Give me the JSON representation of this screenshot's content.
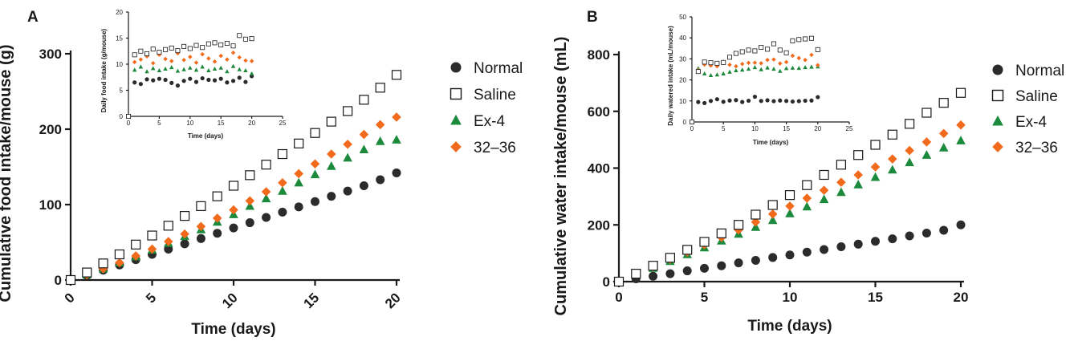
{
  "colors": {
    "Normal": "#2b2b2b",
    "Saline": "#ffffff",
    "Ex-4": "#1c8a3c",
    "32-36": "#f26a1b",
    "axis": "#1a1a1a"
  },
  "legend": {
    "title": "",
    "entries": [
      {
        "name": "Normal",
        "marker": "circle"
      },
      {
        "name": "Saline",
        "marker": "open-square"
      },
      {
        "name": "Ex-4",
        "marker": "triangle"
      },
      {
        "name": "32–36",
        "marker": "diamond"
      }
    ]
  },
  "chart_data": [
    {
      "panel": "A",
      "type": "scatter",
      "xlabel": "Time (days)",
      "ylabel": "Cumulative food intake/mouse (g)",
      "xlim": [
        0,
        20
      ],
      "ylim": [
        0,
        300
      ],
      "xticks": [
        0,
        5,
        10,
        15,
        20
      ],
      "yticks": [
        0,
        100,
        200,
        300
      ],
      "grid": false,
      "legend_position": "right",
      "x": [
        0,
        1,
        2,
        3,
        4,
        5,
        6,
        7,
        8,
        9,
        10,
        11,
        12,
        13,
        14,
        15,
        16,
        17,
        18,
        19,
        20
      ],
      "series": [
        {
          "name": "Normal",
          "values": [
            0,
            6,
            13,
            20,
            27,
            34,
            41,
            48,
            55,
            62,
            69,
            76,
            83,
            90,
            97,
            104,
            111,
            118,
            125,
            133,
            142
          ]
        },
        {
          "name": "Saline",
          "values": [
            0,
            10,
            22,
            34,
            47,
            59,
            72,
            85,
            98,
            111,
            125,
            139,
            153,
            167,
            181,
            195,
            210,
            224,
            239,
            255,
            272
          ]
        },
        {
          "name": "Ex-4",
          "values": [
            0,
            7,
            15,
            23,
            31,
            40,
            49,
            58,
            67,
            77,
            87,
            98,
            108,
            118,
            129,
            140,
            151,
            162,
            173,
            184,
            186
          ]
        },
        {
          "name": "32–36",
          "values": [
            0,
            7,
            15,
            23,
            32,
            41,
            51,
            61,
            71,
            82,
            93,
            105,
            117,
            129,
            141,
            154,
            167,
            180,
            193,
            206,
            216
          ]
        }
      ]
    },
    {
      "panel": "A-inset",
      "type": "scatter",
      "xlabel": "Time (days)",
      "ylabel": "Daily food intake (g/mouse)",
      "xlim": [
        0,
        25
      ],
      "ylim": [
        0,
        20
      ],
      "xticks": [
        0,
        5,
        10,
        15,
        20,
        25
      ],
      "yticks": [
        0,
        5,
        10,
        15,
        20
      ],
      "grid": false,
      "x": [
        0,
        1,
        2,
        3,
        4,
        5,
        6,
        7,
        8,
        9,
        10,
        11,
        12,
        13,
        14,
        15,
        16,
        17,
        18,
        19,
        20
      ],
      "series": [
        {
          "name": "Normal",
          "values": [
            0,
            6.5,
            6.2,
            7.1,
            6.9,
            7.2,
            7.0,
            6.4,
            5.9,
            6.8,
            7.2,
            6.6,
            7.3,
            7.0,
            6.9,
            7.2,
            6.5,
            6.8,
            7.4,
            6.6,
            7.7
          ]
        },
        {
          "name": "Saline",
          "values": [
            0,
            11.8,
            12.5,
            12.0,
            12.9,
            12.3,
            12.8,
            13.1,
            12.6,
            13.4,
            13.0,
            13.6,
            13.2,
            13.9,
            14.1,
            13.7,
            14.0,
            13.5,
            15.5,
            14.8,
            14.9
          ]
        },
        {
          "name": "Ex-4",
          "values": [
            0,
            8.9,
            9.5,
            8.6,
            9.2,
            8.8,
            9.1,
            9.4,
            8.7,
            9.0,
            9.3,
            8.9,
            9.5,
            8.8,
            9.1,
            9.3,
            8.6,
            9.6,
            9.0,
            8.8,
            8.2
          ]
        },
        {
          "name": "32–36",
          "values": [
            0,
            10.4,
            10.9,
            11.5,
            10.2,
            11.8,
            11.0,
            10.6,
            12.1,
            10.8,
            11.4,
            10.3,
            11.9,
            11.1,
            10.5,
            11.6,
            10.9,
            12.2,
            11.3,
            10.7,
            10.6
          ]
        }
      ]
    },
    {
      "panel": "B",
      "type": "scatter",
      "xlabel": "Time (days)",
      "ylabel": "Cumulative water intake/mouse (mL)",
      "xlim": [
        0,
        20
      ],
      "ylim": [
        0,
        800
      ],
      "xticks": [
        0,
        5,
        10,
        15,
        20
      ],
      "yticks": [
        0,
        200,
        400,
        600,
        800
      ],
      "grid": false,
      "legend_position": "right",
      "x": [
        0,
        1,
        2,
        3,
        4,
        5,
        6,
        7,
        8,
        9,
        10,
        11,
        12,
        13,
        14,
        15,
        16,
        17,
        18,
        19,
        20
      ],
      "series": [
        {
          "name": "Normal",
          "values": [
            0,
            10,
            19,
            28,
            38,
            47,
            56,
            66,
            75,
            85,
            94,
            104,
            113,
            123,
            132,
            142,
            151,
            161,
            171,
            181,
            200
          ]
        },
        {
          "name": "Saline",
          "values": [
            0,
            28,
            56,
            84,
            112,
            140,
            170,
            200,
            236,
            270,
            305,
            340,
            376,
            412,
            446,
            482,
            518,
            556,
            595,
            630,
            665
          ]
        },
        {
          "name": "Ex-4",
          "values": [
            0,
            24,
            48,
            72,
            96,
            120,
            144,
            168,
            192,
            216,
            240,
            264,
            290,
            315,
            342,
            368,
            394,
            420,
            446,
            472,
            497
          ]
        },
        {
          "name": "32–36",
          "values": [
            0,
            26,
            52,
            78,
            104,
            130,
            156,
            182,
            210,
            238,
            266,
            294,
            322,
            350,
            376,
            404,
            432,
            462,
            492,
            522,
            552
          ]
        }
      ]
    },
    {
      "panel": "B-inset",
      "type": "scatter",
      "xlabel": "Time (days)",
      "ylabel": "Daily watered intake (mL/mouse)",
      "xlim": [
        0,
        25
      ],
      "ylim": [
        0,
        50
      ],
      "xticks": [
        0,
        5,
        10,
        15,
        20,
        25
      ],
      "yticks": [
        0,
        10,
        20,
        30,
        40,
        50
      ],
      "grid": false,
      "x": [
        0,
        1,
        2,
        3,
        4,
        5,
        6,
        7,
        8,
        9,
        10,
        11,
        12,
        13,
        14,
        15,
        16,
        17,
        18,
        19,
        20
      ],
      "series": [
        {
          "name": "Normal",
          "values": [
            0,
            9.5,
            9.0,
            10.0,
            10.8,
            9.6,
            10.2,
            10.4,
            9.5,
            10.1,
            12.0,
            10.0,
            10.3,
            9.9,
            10.2,
            10.0,
            9.7,
            9.9,
            10.1,
            10.2,
            11.8
          ]
        },
        {
          "name": "Saline",
          "values": [
            0,
            24.0,
            28.5,
            28.2,
            27.9,
            28.3,
            30.8,
            32.6,
            33.4,
            34.2,
            33.8,
            35.5,
            34.6,
            37.2,
            34.2,
            32.9,
            38.6,
            39.2,
            39.5,
            39.8,
            34.4
          ]
        },
        {
          "name": "Ex-4",
          "values": [
            0,
            25.5,
            23.0,
            22.2,
            22.5,
            23.0,
            23.8,
            24.5,
            24.8,
            25.2,
            26.0,
            25.0,
            25.8,
            25.2,
            24.2,
            25.5,
            25.7,
            25.6,
            26.0,
            26.2,
            26.3
          ]
        },
        {
          "name": "32–36",
          "values": [
            0,
            24.7,
            27.3,
            26.8,
            26.5,
            28.7,
            27.2,
            26.5,
            27.6,
            28.1,
            28.2,
            27.9,
            29.5,
            29.7,
            27.8,
            28.5,
            31.5,
            30.4,
            29.5,
            31.9,
            27.0
          ]
        }
      ]
    }
  ]
}
